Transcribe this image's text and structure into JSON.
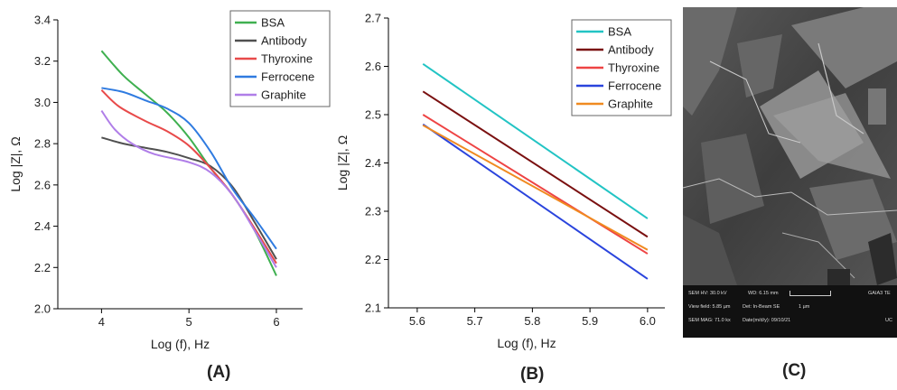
{
  "chart_data": [
    {
      "type": "line",
      "xlabel": "Log (f), Hz",
      "ylabel": "Log |Z|, Ω",
      "xlim": [
        3.5,
        6.3
      ],
      "ylim": [
        2.0,
        3.4
      ],
      "xticks": [
        "4",
        "5",
        "6"
      ],
      "yticks": [
        "2.0",
        "2.2",
        "2.4",
        "2.6",
        "2.8",
        "3.0",
        "3.2",
        "3.4"
      ],
      "legend_position": "top-right",
      "series": [
        {
          "name": "BSA",
          "color": "#3fb050",
          "points": [
            [
              4.0,
              3.25
            ],
            [
              4.25,
              3.13
            ],
            [
              4.5,
              3.04
            ],
            [
              4.75,
              2.95
            ],
            [
              5.0,
              2.83
            ],
            [
              5.25,
              2.68
            ],
            [
              5.5,
              2.55
            ],
            [
              5.75,
              2.38
            ],
            [
              6.0,
              2.16
            ]
          ]
        },
        {
          "name": "Antibody",
          "color": "#505050",
          "points": [
            [
              4.0,
              2.83
            ],
            [
              4.25,
              2.8
            ],
            [
              4.5,
              2.78
            ],
            [
              4.75,
              2.76
            ],
            [
              5.0,
              2.73
            ],
            [
              5.25,
              2.69
            ],
            [
              5.5,
              2.59
            ],
            [
              5.75,
              2.42
            ],
            [
              6.0,
              2.24
            ]
          ]
        },
        {
          "name": "Thyroxine",
          "color": "#e84a4a",
          "points": [
            [
              4.0,
              3.06
            ],
            [
              4.2,
              2.98
            ],
            [
              4.5,
              2.91
            ],
            [
              4.75,
              2.86
            ],
            [
              5.0,
              2.79
            ],
            [
              5.25,
              2.68
            ],
            [
              5.5,
              2.55
            ],
            [
              5.75,
              2.39
            ],
            [
              6.0,
              2.22
            ]
          ]
        },
        {
          "name": "Ferrocene",
          "color": "#2f7be0",
          "points": [
            [
              4.0,
              3.07
            ],
            [
              4.25,
              3.05
            ],
            [
              4.5,
              3.01
            ],
            [
              4.75,
              2.97
            ],
            [
              5.0,
              2.9
            ],
            [
              5.25,
              2.76
            ],
            [
              5.5,
              2.58
            ],
            [
              5.75,
              2.44
            ],
            [
              6.0,
              2.29
            ]
          ]
        },
        {
          "name": "Graphite",
          "color": "#b07ee8",
          "points": [
            [
              4.0,
              2.96
            ],
            [
              4.15,
              2.87
            ],
            [
              4.35,
              2.8
            ],
            [
              4.6,
              2.75
            ],
            [
              5.0,
              2.71
            ],
            [
              5.25,
              2.66
            ],
            [
              5.5,
              2.55
            ],
            [
              5.75,
              2.38
            ],
            [
              6.0,
              2.2
            ]
          ]
        }
      ]
    },
    {
      "type": "line",
      "xlabel": "Log (f), Hz",
      "ylabel": "Log |Z|, Ω",
      "xlim": [
        5.55,
        6.03
      ],
      "ylim": [
        2.1,
        2.7
      ],
      "xticks": [
        "5.6",
        "5.7",
        "5.8",
        "5.9",
        "6.0"
      ],
      "yticks": [
        "2.1",
        "2.2",
        "2.3",
        "2.4",
        "2.5",
        "2.6",
        "2.7"
      ],
      "legend_position": "top-right",
      "series": [
        {
          "name": "BSA",
          "color": "#22c4c4",
          "points": [
            [
              5.61,
              2.605
            ],
            [
              6.0,
              2.285
            ]
          ]
        },
        {
          "name": "Antibody",
          "color": "#7a1010",
          "points": [
            [
              5.61,
              2.548
            ],
            [
              6.0,
              2.247
            ]
          ]
        },
        {
          "name": "Thyroxine",
          "color": "#ee4444",
          "points": [
            [
              5.61,
              2.5
            ],
            [
              6.0,
              2.212
            ]
          ]
        },
        {
          "name": "Ferrocene",
          "color": "#2a44dd",
          "points": [
            [
              5.61,
              2.48
            ],
            [
              6.0,
              2.16
            ]
          ]
        },
        {
          "name": "Graphite",
          "color": "#f08a20",
          "points": [
            [
              5.61,
              2.478
            ],
            [
              6.0,
              2.22
            ]
          ]
        }
      ]
    }
  ],
  "panel_labels": {
    "a": "(A)",
    "b": "(B)",
    "c": "(C)"
  },
  "sem": {
    "hv": "SEM HV: 30.0 kV",
    "wd": "WD: 6.15 mm",
    "instrument": "GAIA3 TE",
    "view_field": "View field: 5.85 µm",
    "det": "Det: In-Beam SE",
    "scale": "1 µm",
    "mag": "SEM MAG: 71.0 kx",
    "date": "Date(m/d/y): 09/10/21",
    "lab": "UC"
  }
}
